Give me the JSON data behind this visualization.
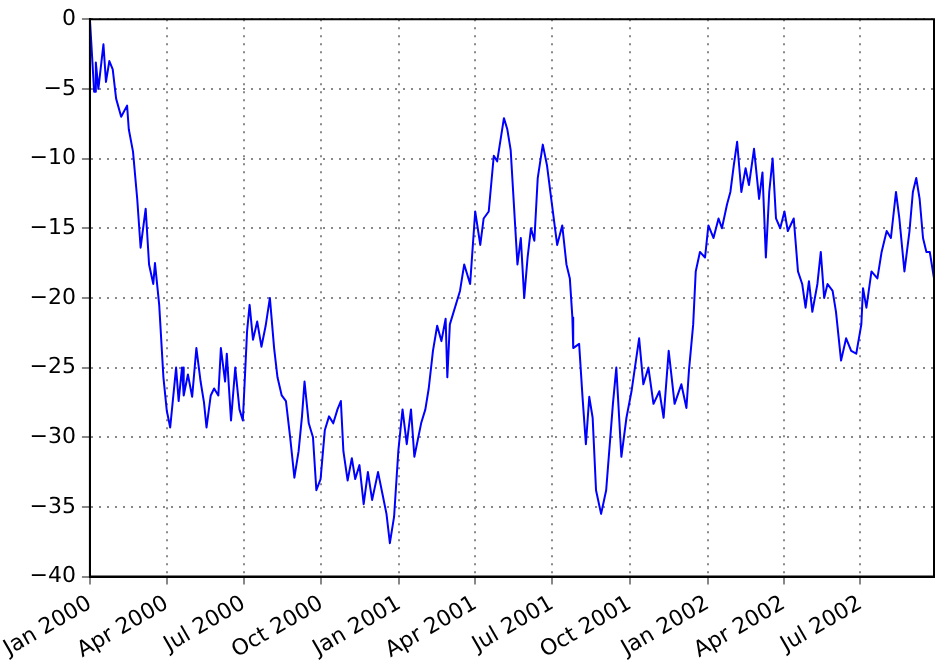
{
  "chart_data": {
    "type": "line",
    "grid": true,
    "legend": false,
    "xlim": [
      "2000-01-01",
      "2002-09-26"
    ],
    "xticks": [
      {
        "value": "2000-01-01",
        "label": "Jan 2000"
      },
      {
        "value": "2000-04-01",
        "label": "Apr 2000"
      },
      {
        "value": "2000-07-01",
        "label": "Jul 2000"
      },
      {
        "value": "2000-10-01",
        "label": "Oct 2000"
      },
      {
        "value": "2001-01-01",
        "label": "Jan 2001"
      },
      {
        "value": "2001-04-01",
        "label": "Apr 2001"
      },
      {
        "value": "2001-07-01",
        "label": "Jul 2001"
      },
      {
        "value": "2001-10-01",
        "label": "Oct 2001"
      },
      {
        "value": "2002-01-01",
        "label": "Jan 2002"
      },
      {
        "value": "2002-04-01",
        "label": "Apr 2002"
      },
      {
        "value": "2002-07-01",
        "label": "Jul 2002"
      }
    ],
    "ylim": [
      -40,
      0
    ],
    "yticks": [
      {
        "value": -40,
        "label": "−40"
      },
      {
        "value": -35,
        "label": "−35"
      },
      {
        "value": -30,
        "label": "−30"
      },
      {
        "value": -25,
        "label": "−25"
      },
      {
        "value": -20,
        "label": "−20"
      },
      {
        "value": -15,
        "label": "−15"
      },
      {
        "value": -10,
        "label": "−10"
      },
      {
        "value": -5,
        "label": "−5"
      },
      0
    ],
    "series": [
      {
        "color": "#0000ff",
        "x": [
          "2000-01-01",
          "2000-01-06",
          "2000-01-08",
          "2000-01-11",
          "2000-01-17",
          "2000-01-20",
          "2000-01-24",
          "2000-01-28",
          "2000-02-01",
          "2000-02-07",
          "2000-02-14",
          "2000-02-16",
          "2000-02-21",
          "2000-02-26",
          "2000-03-01",
          "2000-03-07",
          "2000-03-11",
          "2000-03-16",
          "2000-03-18",
          "2000-03-23",
          "2000-03-28",
          "2000-04-01",
          "2000-04-05",
          "2000-04-12",
          "2000-04-15",
          "2000-04-19",
          "2000-04-21",
          "2000-04-26",
          "2000-05-01",
          "2000-05-06",
          "2000-05-11",
          "2000-05-15",
          "2000-05-18",
          "2000-05-23",
          "2000-05-27",
          "2000-06-01",
          "2000-06-04",
          "2000-06-09",
          "2000-06-11",
          "2000-06-16",
          "2000-06-21",
          "2000-06-26",
          "2000-06-30",
          "2000-07-05",
          "2000-07-08",
          "2000-07-12",
          "2000-07-17",
          "2000-07-22",
          "2000-07-27",
          "2000-08-01",
          "2000-08-06",
          "2000-08-10",
          "2000-08-15",
          "2000-08-20",
          "2000-08-25",
          "2000-08-30",
          "2000-09-04",
          "2000-09-08",
          "2000-09-11",
          "2000-09-16",
          "2000-09-21",
          "2000-09-25",
          "2000-09-30",
          "2000-10-05",
          "2000-10-10",
          "2000-10-15",
          "2000-10-20",
          "2000-10-24",
          "2000-10-27",
          "2000-11-01",
          "2000-11-06",
          "2000-11-10",
          "2000-11-15",
          "2000-11-20",
          "2000-11-25",
          "2000-11-30",
          "2000-12-07",
          "2000-12-12",
          "2000-12-17",
          "2000-12-21",
          "2000-12-26",
          "2000-12-31",
          "2001-01-05",
          "2001-01-10",
          "2001-01-15",
          "2001-01-19",
          "2001-01-27",
          "2001-02-01",
          "2001-02-05",
          "2001-02-10",
          "2001-02-15",
          "2001-02-20",
          "2001-02-25",
          "2001-02-27",
          "2001-03-02",
          "2001-03-14",
          "2001-03-19",
          "2001-03-26",
          "2001-04-01",
          "2001-04-07",
          "2001-04-11",
          "2001-04-17",
          "2001-04-23",
          "2001-04-27",
          "2001-05-05",
          "2001-05-09",
          "2001-05-13",
          "2001-05-21",
          "2001-05-25",
          "2001-05-29",
          "2001-06-02",
          "2001-06-06",
          "2001-06-10",
          "2001-06-14",
          "2001-06-20",
          "2001-06-25",
          "2001-06-30",
          "2001-07-07",
          "2001-07-13",
          "2001-07-18",
          "2001-07-22",
          "2001-07-25",
          "2001-07-26",
          "2001-08-02",
          "2001-08-06",
          "2001-08-10",
          "2001-08-14",
          "2001-08-18",
          "2001-08-22",
          "2001-08-28",
          "2001-09-03",
          "2001-09-11",
          "2001-09-15",
          "2001-09-21",
          "2001-09-27",
          "2001-10-03",
          "2001-10-12",
          "2001-10-17",
          "2001-10-23",
          "2001-10-29",
          "2001-11-05",
          "2001-11-10",
          "2001-11-16",
          "2001-11-23",
          "2001-12-01",
          "2001-12-07",
          "2001-12-10",
          "2001-12-15",
          "2001-12-18",
          "2001-12-23",
          "2001-12-29",
          "2002-01-02",
          "2002-01-08",
          "2002-01-14",
          "2002-01-18",
          "2002-01-24",
          "2002-01-28",
          "2002-02-01",
          "2002-02-05",
          "2002-02-10",
          "2002-02-15",
          "2002-02-19",
          "2002-02-25",
          "2002-03-03",
          "2002-03-07",
          "2002-03-11",
          "2002-03-15",
          "2002-03-19",
          "2002-03-23",
          "2002-03-28",
          "2002-04-02",
          "2002-04-06",
          "2002-04-13",
          "2002-04-18",
          "2002-04-23",
          "2002-04-27",
          "2002-05-01",
          "2002-05-05",
          "2002-05-11",
          "2002-05-15",
          "2002-05-19",
          "2002-05-23",
          "2002-05-29",
          "2002-06-02",
          "2002-06-08",
          "2002-06-14",
          "2002-06-20",
          "2002-06-26",
          "2002-07-02",
          "2002-07-04",
          "2002-07-08",
          "2002-07-14",
          "2002-07-21",
          "2002-07-26",
          "2002-08-01",
          "2002-08-06",
          "2002-08-12",
          "2002-08-16",
          "2002-08-22",
          "2002-08-28",
          "2002-09-01",
          "2002-09-05",
          "2002-09-09",
          "2002-09-13",
          "2002-09-17",
          "2002-09-21",
          "2002-09-26"
        ],
        "values": [
          0,
          -5.2,
          -3.1,
          -5,
          -1.8,
          -4.5,
          -3,
          -3.6,
          -5.7,
          -7,
          -6.2,
          -7.9,
          -9.5,
          -12.9,
          -16.4,
          -13.6,
          -17.6,
          -19,
          -17.5,
          -20.5,
          -25.7,
          -28.1,
          -29.3,
          -25,
          -27.4,
          -25,
          -27,
          -25.5,
          -27.1,
          -23.6,
          -26,
          -27.5,
          -29.3,
          -27,
          -26.5,
          -27,
          -23.6,
          -26,
          -24,
          -28.8,
          -25,
          -28,
          -28.8,
          -22.4,
          -20.5,
          -23,
          -21.7,
          -23.5,
          -22,
          -20,
          -23.6,
          -25.7,
          -27,
          -27.4,
          -30,
          -32.9,
          -31,
          -28.5,
          -26,
          -29,
          -30,
          -33.8,
          -33,
          -29.5,
          -28.5,
          -29,
          -28,
          -27.4,
          -31,
          -33.1,
          -31.5,
          -33,
          -32,
          -34.8,
          -32.5,
          -34.5,
          -32.5,
          -34,
          -35.5,
          -37.6,
          -35.7,
          -31,
          -28,
          -30.5,
          -28,
          -31.4,
          -29,
          -28,
          -26.5,
          -23.8,
          -22,
          -23.1,
          -21.5,
          -25.7,
          -21.9,
          -19.5,
          -17.6,
          -19,
          -13.8,
          -16.2,
          -14.3,
          -13.8,
          -9.8,
          -10.2,
          -7.1,
          -7.9,
          -9.4,
          -17.6,
          -15.7,
          -20,
          -17.1,
          -15,
          -15.9,
          -11.4,
          -9,
          -10.5,
          -12.9,
          -16.2,
          -14.8,
          -17.6,
          -18.6,
          -21.4,
          -23.6,
          -23.3,
          -27.1,
          -30.5,
          -27.1,
          -28.6,
          -33.8,
          -35.5,
          -33.8,
          -27.6,
          -25,
          -31.4,
          -28.6,
          -26.7,
          -22.9,
          -26.2,
          -25,
          -27.6,
          -26.7,
          -28.6,
          -23.8,
          -27.6,
          -26.2,
          -27.9,
          -25.2,
          -21.9,
          -18.1,
          -16.7,
          -17.1,
          -14.8,
          -15.7,
          -14.3,
          -15,
          -13.3,
          -12.4,
          -10.5,
          -8.8,
          -12.4,
          -10.7,
          -11.9,
          -9.3,
          -12.9,
          -11,
          -17.1,
          -12.4,
          -10,
          -14.3,
          -15,
          -13.8,
          -15.2,
          -14.3,
          -18.1,
          -19,
          -20.7,
          -18.8,
          -21,
          -19,
          -16.7,
          -20,
          -19,
          -19.5,
          -21,
          -24.5,
          -22.9,
          -23.8,
          -24,
          -21.9,
          -19.3,
          -20.7,
          -18.1,
          -18.6,
          -16.7,
          -15.2,
          -15.7,
          -12.4,
          -14.3,
          -18.1,
          -15.2,
          -12.4,
          -11.4,
          -12.9,
          -15.7,
          -16.7,
          -16.7,
          -18.6
        ]
      }
    ]
  }
}
